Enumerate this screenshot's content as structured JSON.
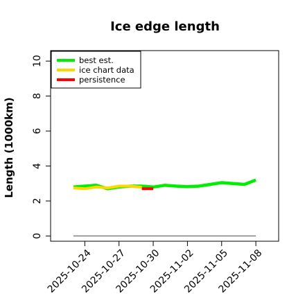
{
  "chart_data": {
    "type": "line",
    "title": "Ice edge length",
    "xlabel": "",
    "ylabel": "Length (1000km)",
    "xlim": [
      "2025-10-21",
      "2025-11-10"
    ],
    "ylim": [
      -0.3,
      10.6
    ],
    "x_ticks": [
      "2025-10-24",
      "2025-10-27",
      "2025-10-30",
      "2025-11-02",
      "2025-11-05",
      "2025-11-08"
    ],
    "y_ticks": [
      0,
      2,
      4,
      6,
      8,
      10
    ],
    "grid": false,
    "legend_position": "top-left",
    "series": [
      {
        "name": "best est.",
        "color": "#00ee00",
        "x": [
          "2025-10-23",
          "2025-10-24",
          "2025-10-25",
          "2025-10-26",
          "2025-10-27",
          "2025-10-28",
          "2025-10-29",
          "2025-10-30",
          "2025-10-31",
          "2025-11-01",
          "2025-11-02",
          "2025-11-03",
          "2025-11-04",
          "2025-11-05",
          "2025-11-06",
          "2025-11-07",
          "2025-11-08"
        ],
        "y": [
          2.8,
          2.85,
          2.9,
          2.7,
          2.8,
          2.85,
          2.85,
          2.8,
          2.9,
          2.85,
          2.82,
          2.85,
          2.95,
          3.05,
          3.0,
          2.95,
          3.2
        ]
      },
      {
        "name": "ice chart data",
        "color": "#ffd700",
        "x": [
          "2025-10-23",
          "2025-10-24",
          "2025-10-25",
          "2025-10-26",
          "2025-10-27",
          "2025-10-28",
          "2025-10-29"
        ],
        "y": [
          2.75,
          2.7,
          2.8,
          2.75,
          2.85,
          2.85,
          2.78
        ]
      },
      {
        "name": "persistence",
        "color": "#ff0000",
        "x": [
          "2025-10-29",
          "2025-10-30"
        ],
        "y": [
          2.7,
          2.7
        ]
      }
    ],
    "baseline": {
      "y": 0,
      "from": "2025-10-23",
      "to": "2025-11-08",
      "color": "#808080"
    }
  }
}
